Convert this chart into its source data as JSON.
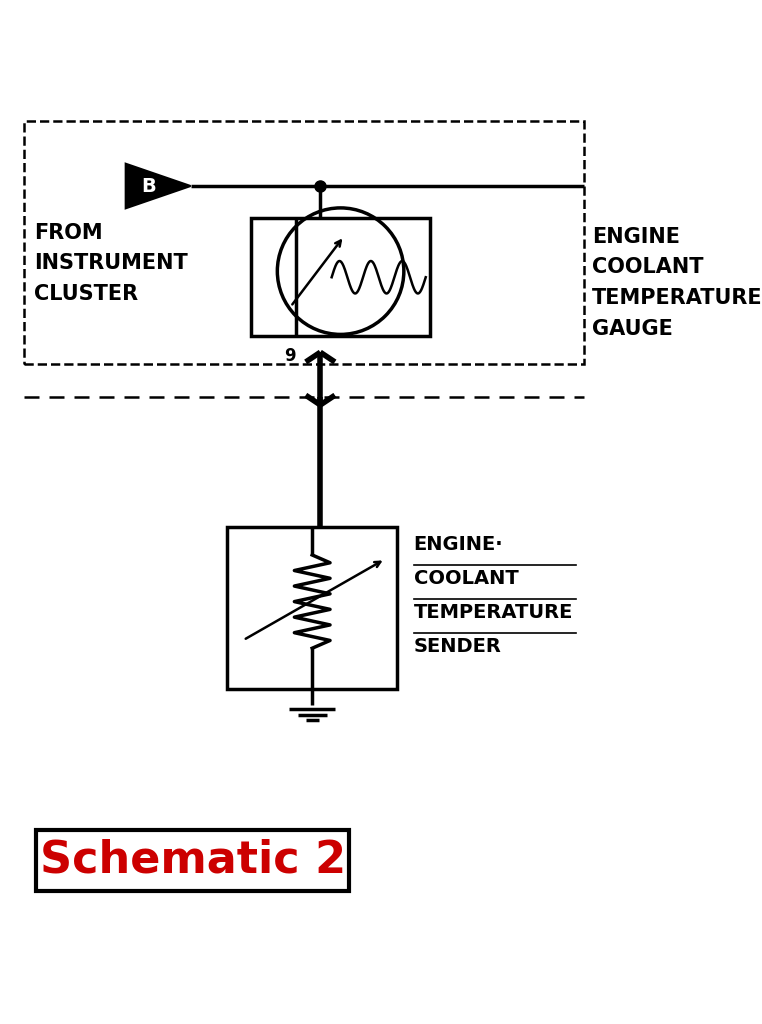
{
  "bg_color": "#ffffff",
  "line_color": "#000000",
  "red_color": "#cc0000",
  "title": "Schematic 2",
  "label_gauge": [
    "ENGINE",
    "COOLANT",
    "TEMPERATURE",
    "GAUGE"
  ],
  "label_sender": [
    "ENGINE·",
    "COOLANT",
    "TEMPERATURE",
    "SENDER"
  ],
  "label_cluster": [
    "FROM",
    "INSTRUMENT",
    "CLUSTER"
  ],
  "connector_label": "9",
  "triangle_label": "B"
}
